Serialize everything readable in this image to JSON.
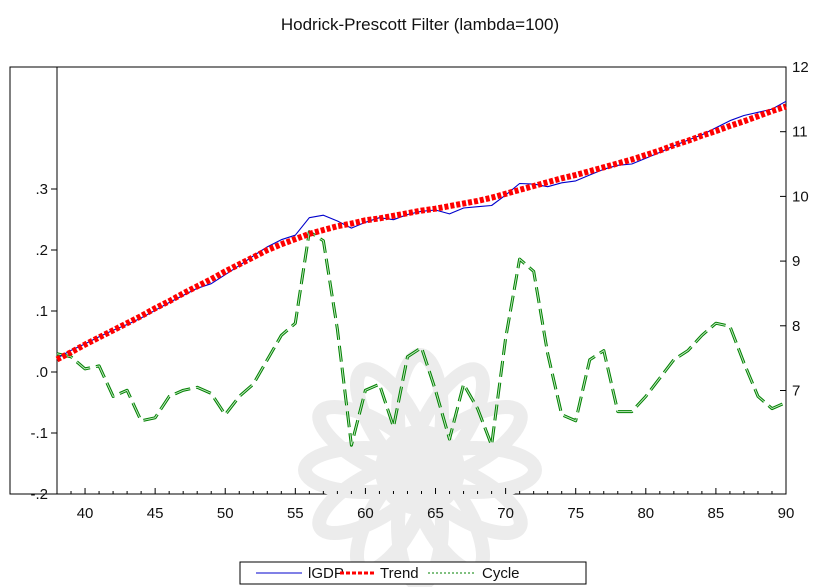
{
  "chart_data": {
    "type": "line",
    "title": "Hodrick-Prescott Filter (lambda=100)",
    "xlabel": "",
    "left_ylabel": "",
    "right_ylabel": "",
    "x_ticks": [
      "40",
      "45",
      "50",
      "55",
      "60",
      "65",
      "70",
      "75",
      "80",
      "85",
      "90"
    ],
    "left_y_ticks": [
      ".3",
      ".2",
      ".1",
      ".0",
      "-.1",
      "-.2"
    ],
    "right_y_ticks": [
      "12",
      "11",
      "10",
      "9",
      "8",
      "7"
    ],
    "xlim": [
      1938,
      1990
    ],
    "left_ylim": [
      -0.2,
      0.5
    ],
    "right_ylim": [
      5.4,
      12
    ],
    "legend_placement": "bottom-center",
    "x": [
      1938,
      1939,
      1940,
      1941,
      1942,
      1943,
      1944,
      1945,
      1946,
      1947,
      1948,
      1949,
      1950,
      1951,
      1952,
      1953,
      1954,
      1955,
      1956,
      1957,
      1958,
      1959,
      1960,
      1961,
      1962,
      1963,
      1964,
      1965,
      1966,
      1967,
      1968,
      1969,
      1970,
      1971,
      1972,
      1973,
      1974,
      1975,
      1976,
      1977,
      1978,
      1979,
      1980,
      1981,
      1982,
      1983,
      1984,
      1985,
      1986,
      1987,
      1988,
      1989,
      1990
    ],
    "series": [
      {
        "name": "lGDP",
        "axis": "right",
        "color": "#0000cc",
        "style": "solid",
        "values": [
          7.5,
          7.62,
          7.72,
          7.83,
          7.93,
          8.02,
          8.12,
          8.24,
          8.36,
          8.47,
          8.58,
          8.65,
          8.79,
          8.93,
          9.08,
          9.22,
          9.33,
          9.4,
          9.67,
          9.71,
          9.62,
          9.51,
          9.6,
          9.67,
          9.64,
          9.72,
          9.77,
          9.79,
          9.73,
          9.82,
          9.84,
          9.86,
          10.02,
          10.2,
          10.19,
          10.15,
          10.21,
          10.24,
          10.33,
          10.42,
          10.48,
          10.5,
          10.59,
          10.68,
          10.78,
          10.87,
          10.95,
          11.06,
          11.17,
          11.25,
          11.3,
          11.35,
          11.47
        ]
      },
      {
        "name": "Trend",
        "axis": "right",
        "color": "#ff0000",
        "style": "dotted-thick",
        "values": [
          7.48,
          7.59,
          7.71,
          7.82,
          7.93,
          8.04,
          8.15,
          8.27,
          8.38,
          8.5,
          8.61,
          8.72,
          8.84,
          8.95,
          9.06,
          9.17,
          9.26,
          9.34,
          9.42,
          9.48,
          9.54,
          9.58,
          9.63,
          9.66,
          9.7,
          9.74,
          9.78,
          9.81,
          9.85,
          9.89,
          9.93,
          9.98,
          10.04,
          10.1,
          10.16,
          10.22,
          10.28,
          10.33,
          10.39,
          10.45,
          10.51,
          10.57,
          10.64,
          10.71,
          10.79,
          10.86,
          10.94,
          11.01,
          11.09,
          11.16,
          11.24,
          11.32,
          11.39
        ]
      },
      {
        "name": "Cycle",
        "axis": "left",
        "color": "#008000",
        "style": "dashed",
        "values": [
          0.03,
          0.025,
          0.005,
          0.01,
          -0.04,
          -0.03,
          -0.08,
          -0.075,
          -0.04,
          -0.03,
          -0.025,
          -0.035,
          -0.07,
          -0.04,
          -0.02,
          0.02,
          0.06,
          0.08,
          0.23,
          0.215,
          0.07,
          -0.12,
          -0.03,
          -0.02,
          -0.09,
          0.025,
          0.04,
          -0.03,
          -0.11,
          -0.02,
          -0.06,
          -0.12,
          0.055,
          0.185,
          0.165,
          0.03,
          -0.07,
          -0.08,
          0.02,
          0.035,
          -0.065,
          -0.065,
          -0.04,
          -0.01,
          0.02,
          0.035,
          0.06,
          0.08,
          0.075,
          0.015,
          -0.04,
          -0.06,
          -0.05
        ]
      }
    ]
  }
}
